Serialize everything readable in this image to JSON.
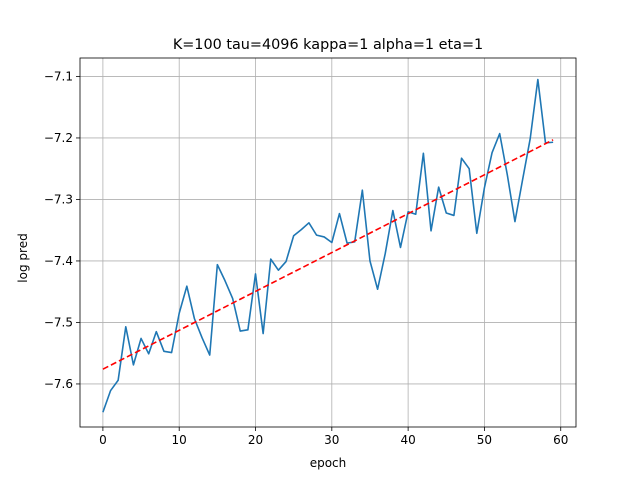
{
  "chart_data": {
    "type": "line",
    "title": "K=100 tau=4096 kappa=1 alpha=1 eta=1",
    "xlabel": "epoch",
    "ylabel": "log pred",
    "xlim": [
      -3,
      62
    ],
    "ylim": [
      -7.67,
      -7.07
    ],
    "xticks": [
      0,
      10,
      20,
      30,
      40,
      50,
      60
    ],
    "yticks": [
      -7.6,
      -7.5,
      -7.4,
      -7.3,
      -7.2,
      -7.1
    ],
    "ytick_labels": [
      "−7.6",
      "−7.5",
      "−7.4",
      "−7.3",
      "−7.2",
      "−7.1"
    ],
    "grid": true,
    "series": [
      {
        "style": "solid",
        "color": "#1f77b4",
        "x": [
          0,
          1,
          2,
          3,
          4,
          5,
          6,
          7,
          8,
          9,
          10,
          11,
          12,
          13,
          14,
          15,
          16,
          17,
          18,
          19,
          20,
          21,
          22,
          23,
          24,
          25,
          26,
          27,
          28,
          29,
          30,
          31,
          32,
          33,
          34,
          35,
          36,
          37,
          38,
          39,
          40,
          41,
          42,
          43,
          44,
          45,
          46,
          47,
          48,
          49,
          50,
          51,
          52,
          53,
          54,
          55,
          56,
          57,
          58,
          59
        ],
        "y": [
          -7.646,
          -7.611,
          -7.594,
          -7.507,
          -7.569,
          -7.526,
          -7.551,
          -7.515,
          -7.547,
          -7.549,
          -7.485,
          -7.441,
          -7.494,
          -7.525,
          -7.553,
          -7.406,
          -7.432,
          -7.461,
          -7.514,
          -7.512,
          -7.421,
          -7.518,
          -7.397,
          -7.415,
          -7.401,
          -7.359,
          -7.349,
          -7.338,
          -7.358,
          -7.361,
          -7.37,
          -7.323,
          -7.371,
          -7.369,
          -7.285,
          -7.4,
          -7.446,
          -7.388,
          -7.318,
          -7.378,
          -7.32,
          -7.324,
          -7.225,
          -7.351,
          -7.28,
          -7.322,
          -7.326,
          -7.233,
          -7.25,
          -7.355,
          -7.281,
          -7.224,
          -7.193,
          -7.26,
          -7.336,
          -7.268,
          -7.201,
          -7.105,
          -7.208,
          -7.207
        ]
      },
      {
        "style": "dashed",
        "color": "#ff0000",
        "x": [
          0,
          59
        ],
        "y": [
          -7.576,
          -7.203
        ]
      }
    ]
  }
}
